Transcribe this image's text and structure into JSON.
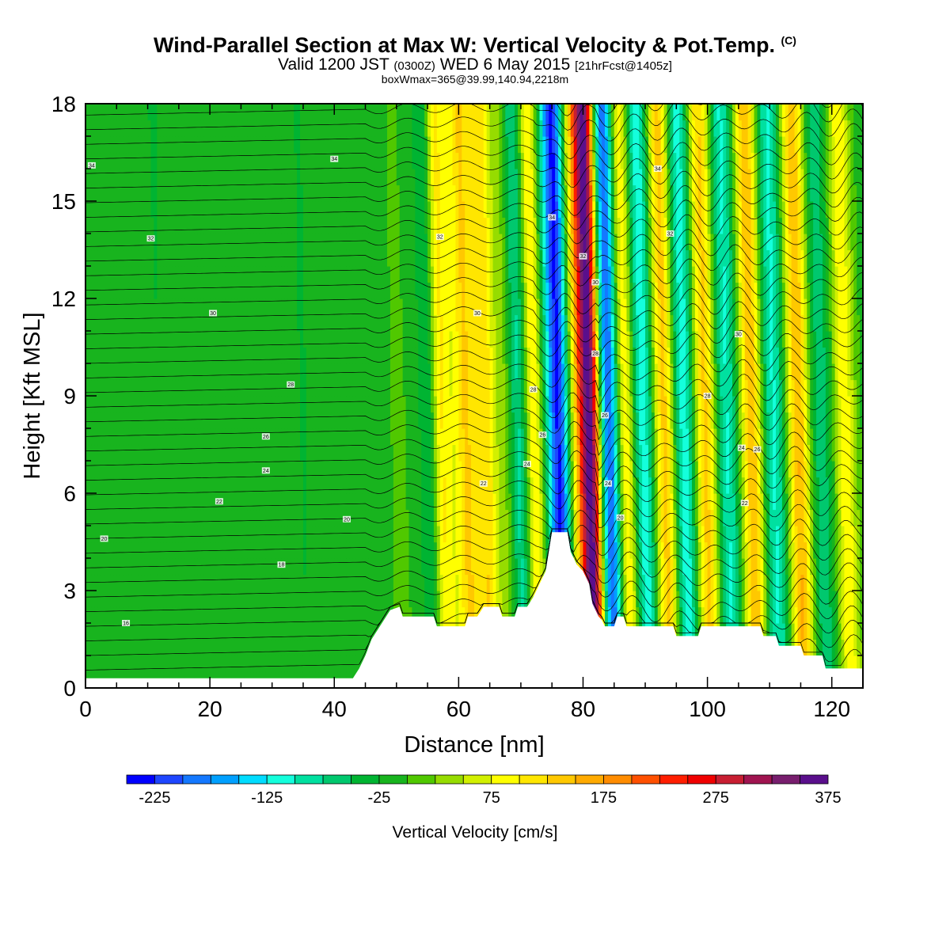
{
  "header": {
    "title": "Wind-Parallel Section at Max W: Vertical Velocity & Pot.Temp.",
    "title_mark": "(C)",
    "valid_prefix": "Valid 1200 JST",
    "valid_utc": "(0300Z)",
    "valid_date": "WED 6 May 2015",
    "forecast_info": "[21hrFcst@1405z]",
    "box_info": "boxWmax=365@39.99,140.94,2218m"
  },
  "chart_data": {
    "type": "heatmap",
    "xlabel": "Distance [nm]",
    "ylabel": "Height [Kft MSL]",
    "xlim": [
      0,
      125
    ],
    "ylim": [
      0,
      18
    ],
    "x_ticks": [
      0,
      20,
      40,
      60,
      80,
      100,
      120
    ],
    "y_ticks": [
      0,
      3,
      6,
      9,
      12,
      15,
      18
    ],
    "colorbar": {
      "title": "Vertical Velocity [cm/s]",
      "min": -250,
      "step": 25,
      "labels": [
        -225,
        -125,
        -25,
        75,
        175,
        275,
        375
      ],
      "colors": [
        "#0000ff",
        "#1e46ff",
        "#1478ff",
        "#00a0ff",
        "#00dcff",
        "#14ffdc",
        "#00e0a0",
        "#00c86e",
        "#00b432",
        "#18b41e",
        "#50c800",
        "#96dc00",
        "#d2f000",
        "#ffff00",
        "#ffe600",
        "#ffc800",
        "#ffaa00",
        "#ff8c00",
        "#ff5000",
        "#ff1e00",
        "#f00000",
        "#c81e32",
        "#a01450",
        "#781e6e",
        "#5a0f8c"
      ]
    },
    "vertical_velocity_bands": [
      {
        "x": 3,
        "w": -6
      },
      {
        "x": 12,
        "w": -10
      },
      {
        "x": 22,
        "w": -4
      },
      {
        "x": 35,
        "w": -8
      },
      {
        "x": 47,
        "w": 15
      },
      {
        "x": 50,
        "w": 20
      },
      {
        "x": 55,
        "w": -50
      },
      {
        "x": 57,
        "w": 110
      },
      {
        "x": 59,
        "w": 60
      },
      {
        "x": 61,
        "w": 130
      },
      {
        "x": 63,
        "w": 70
      },
      {
        "x": 64.5,
        "w": 100
      },
      {
        "x": 67,
        "w": 40
      },
      {
        "x": 69.5,
        "w": -70
      },
      {
        "x": 72,
        "w": 120
      },
      {
        "x": 76,
        "w": -230
      },
      {
        "x": 78.5,
        "w": 80
      },
      {
        "x": 81,
        "w": 380
      },
      {
        "x": 84,
        "w": -225
      },
      {
        "x": 86.5,
        "w": 140
      },
      {
        "x": 89.5,
        "w": -120
      },
      {
        "x": 93,
        "w": 150
      },
      {
        "x": 96,
        "w": -110
      },
      {
        "x": 99.5,
        "w": 150
      },
      {
        "x": 103,
        "w": -100
      },
      {
        "x": 107,
        "w": 160
      },
      {
        "x": 110.5,
        "w": -90
      },
      {
        "x": 114.5,
        "w": 160
      },
      {
        "x": 118,
        "w": -60
      },
      {
        "x": 122,
        "w": 110
      }
    ],
    "terrain": [
      [
        0,
        0.3
      ],
      [
        43,
        0.3
      ],
      [
        44,
        0.6
      ],
      [
        45,
        1.0
      ],
      [
        46,
        1.5
      ],
      [
        47,
        1.8
      ],
      [
        48,
        2.1
      ],
      [
        49,
        2.4
      ],
      [
        50.5,
        2.5
      ],
      [
        51,
        2.2
      ],
      [
        56,
        2.2
      ],
      [
        56.5,
        1.9
      ],
      [
        61,
        1.9
      ],
      [
        61.5,
        2.2
      ],
      [
        63,
        2.2
      ],
      [
        64,
        2.5
      ],
      [
        66.5,
        2.5
      ],
      [
        67,
        2.2
      ],
      [
        69,
        2.2
      ],
      [
        69.5,
        2.5
      ],
      [
        71,
        2.5
      ],
      [
        72,
        2.8
      ],
      [
        73,
        3.2
      ],
      [
        74,
        3.6
      ],
      [
        74.5,
        4.2
      ],
      [
        75,
        4.8
      ],
      [
        77.5,
        4.8
      ],
      [
        78,
        4.2
      ],
      [
        79,
        3.8
      ],
      [
        80,
        3.6
      ],
      [
        81,
        3.2
      ],
      [
        81.5,
        2.6
      ],
      [
        82.5,
        2.2
      ],
      [
        83,
        2.1
      ],
      [
        83.5,
        1.9
      ],
      [
        85,
        1.9
      ],
      [
        85.5,
        2.2
      ],
      [
        86.5,
        2.2
      ],
      [
        87,
        1.9
      ],
      [
        94.5,
        1.9
      ],
      [
        95,
        1.6
      ],
      [
        98.5,
        1.6
      ],
      [
        99,
        1.9
      ],
      [
        108.5,
        1.9
      ],
      [
        109,
        1.6
      ],
      [
        111,
        1.6
      ],
      [
        111.5,
        1.3
      ],
      [
        115,
        1.3
      ],
      [
        115.5,
        1.0
      ],
      [
        118.5,
        1.0
      ],
      [
        119,
        0.6
      ],
      [
        125,
        0.6
      ]
    ],
    "theta_contour_labels": [
      {
        "x": 1,
        "y": 16.1,
        "text": "34"
      },
      {
        "x": 40,
        "y": 16.3,
        "text": "34"
      },
      {
        "x": 92,
        "y": 16.0,
        "text": "34"
      },
      {
        "x": 75,
        "y": 14.5,
        "text": "34"
      },
      {
        "x": 10.5,
        "y": 13.85,
        "text": "32"
      },
      {
        "x": 57,
        "y": 13.9,
        "text": "32"
      },
      {
        "x": 94,
        "y": 14.0,
        "text": "32"
      },
      {
        "x": 80,
        "y": 13.3,
        "text": "32"
      },
      {
        "x": 82,
        "y": 12.5,
        "text": "30"
      },
      {
        "x": 20.5,
        "y": 11.55,
        "text": "30"
      },
      {
        "x": 63,
        "y": 11.55,
        "text": "30"
      },
      {
        "x": 105,
        "y": 10.9,
        "text": "30"
      },
      {
        "x": 82,
        "y": 10.3,
        "text": "28"
      },
      {
        "x": 33,
        "y": 9.35,
        "text": "28"
      },
      {
        "x": 72,
        "y": 9.2,
        "text": "28"
      },
      {
        "x": 100,
        "y": 9.0,
        "text": "28"
      },
      {
        "x": 83.5,
        "y": 8.4,
        "text": "26"
      },
      {
        "x": 29,
        "y": 7.75,
        "text": "26"
      },
      {
        "x": 73.5,
        "y": 7.8,
        "text": "26"
      },
      {
        "x": 108,
        "y": 7.35,
        "text": "26"
      },
      {
        "x": 29,
        "y": 6.7,
        "text": "24"
      },
      {
        "x": 71,
        "y": 6.9,
        "text": "24"
      },
      {
        "x": 105.5,
        "y": 7.4,
        "text": "24"
      },
      {
        "x": 84,
        "y": 6.3,
        "text": "24"
      },
      {
        "x": 21.5,
        "y": 5.75,
        "text": "22"
      },
      {
        "x": 64,
        "y": 6.3,
        "text": "22"
      },
      {
        "x": 106,
        "y": 5.7,
        "text": "22"
      },
      {
        "x": 42,
        "y": 5.2,
        "text": "20"
      },
      {
        "x": 86,
        "y": 5.25,
        "text": "20"
      },
      {
        "x": 3,
        "y": 4.6,
        "text": "20"
      },
      {
        "x": 31.5,
        "y": 3.8,
        "text": "18"
      },
      {
        "x": 6.5,
        "y": 2.0,
        "text": "16"
      }
    ]
  }
}
